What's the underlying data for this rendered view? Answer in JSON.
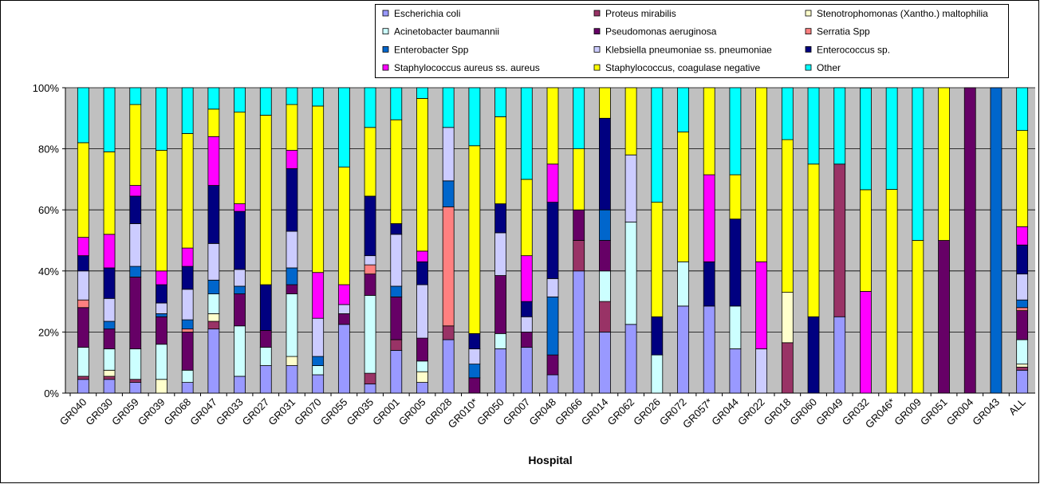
{
  "chart_data": {
    "type": "stacked_bar",
    "x_label": "Hospital",
    "categories": [
      "GR040",
      "GR030",
      "GR059",
      "GR039",
      "GR068",
      "GR047",
      "GR033",
      "GR027",
      "GR031",
      "GR070",
      "GR055",
      "GR035",
      "GR001",
      "GR005",
      "GR028",
      "GR010*",
      "GR050",
      "GR007",
      "GR048",
      "GR066",
      "GR014",
      "GR062",
      "GR026",
      "GR072",
      "GR057*",
      "GR044",
      "GR022",
      "GR018",
      "GR060",
      "GR049",
      "GR032",
      "GR046*",
      "GR009",
      "GR051",
      "GR004",
      "GR043",
      "ALL"
    ],
    "ylim": [
      0,
      100
    ],
    "yticks": [
      {
        "value": 0,
        "label": "0%"
      },
      {
        "value": 20,
        "label": "20%"
      },
      {
        "value": 40,
        "label": "40%"
      },
      {
        "value": 60,
        "label": "60%"
      },
      {
        "value": 80,
        "label": "80%"
      },
      {
        "value": 100,
        "label": "100%"
      }
    ],
    "grid": true,
    "legend": "top-right",
    "series": [
      {
        "name": "Escherichia coli",
        "color": "#9999ff",
        "values": [
          4.5,
          4.5,
          3.5,
          0,
          3.5,
          21,
          5.5,
          9,
          9,
          6,
          22.5,
          3,
          14,
          3.5,
          17.5,
          0,
          14.5,
          15,
          6,
          40,
          20,
          22.5,
          0,
          28.5,
          28.5,
          14.5,
          0,
          0,
          0,
          25,
          0,
          0,
          0,
          0,
          0,
          0,
          7.5
        ]
      },
      {
        "name": "Proteus mirabilis",
        "color": "#993366",
        "values": [
          1,
          1,
          1,
          0,
          0,
          2.5,
          0,
          0,
          0,
          0,
          0,
          3.5,
          3.5,
          0,
          4.5,
          0,
          0,
          0,
          0,
          10,
          10,
          0,
          0,
          0,
          0,
          0,
          0,
          16.5,
          0,
          50,
          0,
          0,
          0,
          0,
          0,
          0,
          1
        ]
      },
      {
        "name": "Stenotrophomonas (Xantho.) maltophilia",
        "color": "#ffffcc",
        "values": [
          0,
          2,
          0,
          4.5,
          0,
          2.5,
          0,
          0,
          3,
          0,
          0,
          0,
          0,
          3.5,
          0,
          0,
          0,
          0,
          0,
          0,
          0,
          0,
          0,
          0,
          0,
          0,
          0,
          16.5,
          0,
          0,
          0,
          0,
          0,
          0,
          0,
          0,
          1
        ]
      },
      {
        "name": "Acinetobacter baumannii",
        "color": "#ccffff",
        "values": [
          9.5,
          7,
          10,
          11.5,
          4,
          6.5,
          16.5,
          6,
          20.5,
          3,
          0,
          25.5,
          0,
          3.5,
          0,
          0,
          5,
          0,
          0,
          0,
          10,
          33.5,
          12.5,
          14.5,
          0,
          14,
          0,
          0,
          0,
          0,
          0,
          0,
          0,
          0,
          0,
          0,
          8
        ]
      },
      {
        "name": "Pseudomonas aeruginosa",
        "color": "#660066",
        "values": [
          13,
          6.5,
          23.5,
          9,
          12.5,
          0,
          10.5,
          5.5,
          3,
          0,
          3.5,
          7,
          14,
          7.5,
          0,
          5,
          19,
          5,
          6.5,
          10,
          10,
          0,
          0,
          0,
          0,
          0,
          0,
          0,
          0,
          0,
          0,
          0,
          0,
          50,
          100,
          0,
          9.5
        ]
      },
      {
        "name": "Serratia Spp",
        "color": "#ff8080",
        "values": [
          2.5,
          0,
          0,
          0,
          1,
          0,
          0,
          0,
          0,
          0,
          0,
          3,
          0,
          0,
          39,
          0,
          0,
          0,
          0,
          0,
          0,
          0,
          0,
          0,
          0,
          0,
          0,
          0,
          0,
          0,
          0,
          0,
          0,
          0,
          0,
          0,
          1
        ]
      },
      {
        "name": "Enterobacter Spp",
        "color": "#0066cc",
        "values": [
          0,
          2.5,
          3.5,
          1,
          3,
          4.5,
          2.5,
          0,
          5.5,
          3,
          0,
          0,
          3.5,
          0,
          8.5,
          4.5,
          0,
          0,
          19,
          0,
          10,
          0,
          0,
          0,
          0,
          0,
          0,
          0,
          0,
          0,
          0,
          0,
          0,
          0,
          0,
          100,
          2.5
        ]
      },
      {
        "name": "Klebsiella pneumoniae ss. pneumoniae",
        "color": "#ccccff",
        "values": [
          9.5,
          7.5,
          14,
          3.5,
          10,
          12,
          5.5,
          0,
          12,
          12.5,
          3,
          3,
          17,
          17.5,
          17.5,
          5,
          14,
          5,
          6,
          0,
          0,
          22,
          0,
          0,
          0,
          0,
          14.5,
          0,
          0,
          0,
          0,
          0,
          0,
          0,
          0,
          0,
          8.5
        ]
      },
      {
        "name": "Enterococcus sp.",
        "color": "#000080",
        "values": [
          5,
          10,
          9,
          6,
          7.5,
          19,
          19,
          15,
          20.5,
          0,
          0,
          19.5,
          3.5,
          7.5,
          0,
          5,
          9.5,
          5,
          25,
          0,
          30,
          0,
          12.5,
          0,
          14.5,
          28.5,
          0,
          0,
          25,
          0,
          0,
          0,
          0,
          0,
          0,
          0,
          9.5
        ]
      },
      {
        "name": "Staphylococcus aureus ss. aureus",
        "color": "#ff00ff",
        "values": [
          6,
          11,
          3.5,
          4.5,
          6,
          16,
          2.5,
          0,
          6,
          15,
          6.5,
          0,
          0,
          3.5,
          0,
          0,
          0,
          15,
          12.5,
          0,
          0,
          0,
          0,
          0,
          28.5,
          0,
          28.5,
          0,
          0,
          0,
          33.3,
          0,
          0,
          0,
          0,
          0,
          6
        ]
      },
      {
        "name": "Staphylococcus, coagulase negative",
        "color": "#ffff00",
        "values": [
          31,
          27,
          26.5,
          39.5,
          37.5,
          9,
          30,
          55.5,
          15,
          54.5,
          38.5,
          22.5,
          34,
          50,
          0,
          61.5,
          28.5,
          25,
          25,
          20,
          10,
          22,
          37.5,
          42.5,
          28.5,
          14.5,
          57,
          50,
          50,
          0,
          33.3,
          66.7,
          50,
          50,
          0,
          0,
          31.5
        ]
      },
      {
        "name": "Other",
        "color": "#00ffff",
        "values": [
          18,
          21,
          5.5,
          20.5,
          15,
          7,
          8,
          9,
          5.5,
          6,
          26,
          13,
          10.5,
          3.5,
          13,
          19,
          9.5,
          30,
          0,
          20,
          0,
          0,
          37.5,
          14.5,
          0,
          28.5,
          0,
          17,
          25,
          25,
          33.3,
          33.3,
          50,
          0,
          0,
          0,
          14
        ]
      }
    ]
  }
}
